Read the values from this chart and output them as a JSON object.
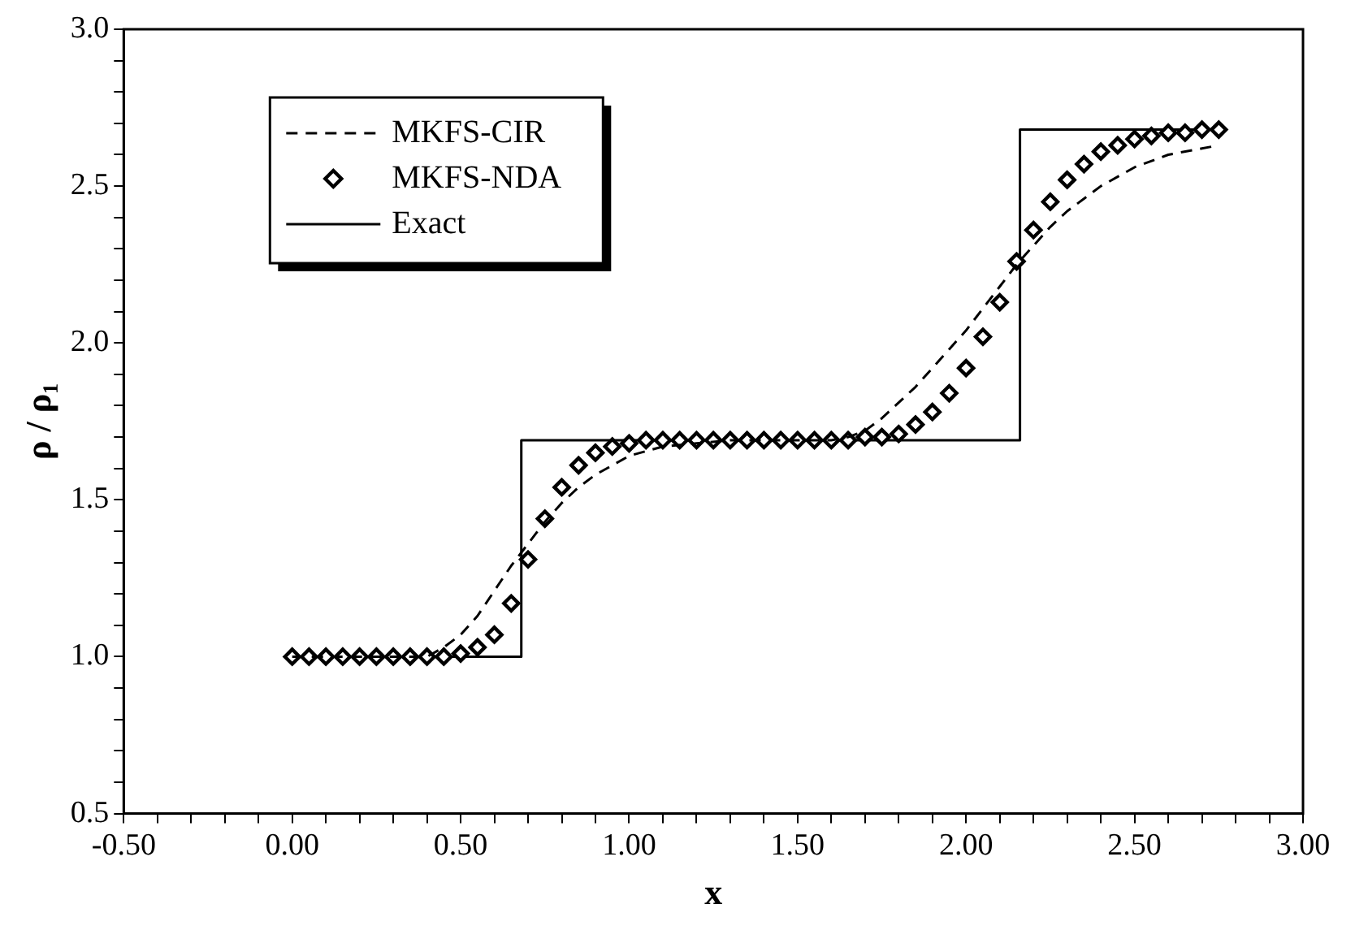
{
  "chart_data": {
    "type": "line",
    "xlabel": "x",
    "ylabel": "ρ / ρ₁",
    "xlim": [
      -0.5,
      3.0
    ],
    "ylim": [
      0.5,
      3.0
    ],
    "xticks": [
      {
        "value": -0.5,
        "label": "-0.50"
      },
      {
        "value": -0.4,
        "label": null
      },
      {
        "value": -0.3,
        "label": null
      },
      {
        "value": -0.2,
        "label": null
      },
      {
        "value": -0.1,
        "label": null
      },
      {
        "value": 0,
        "label": "0.00"
      },
      {
        "value": 0.1,
        "label": null
      },
      {
        "value": 0.2,
        "label": null
      },
      {
        "value": 0.3,
        "label": null
      },
      {
        "value": 0.4,
        "label": null
      },
      {
        "value": 0.5,
        "label": "0.50"
      },
      {
        "value": 0.6,
        "label": null
      },
      {
        "value": 0.7,
        "label": null
      },
      {
        "value": 0.8,
        "label": null
      },
      {
        "value": 0.9,
        "label": null
      },
      {
        "value": 1,
        "label": "1.00"
      },
      {
        "value": 1.1,
        "label": null
      },
      {
        "value": 1.2,
        "label": null
      },
      {
        "value": 1.3,
        "label": null
      },
      {
        "value": 1.4,
        "label": null
      },
      {
        "value": 1.5,
        "label": "1.50"
      },
      {
        "value": 1.6,
        "label": null
      },
      {
        "value": 1.7,
        "label": null
      },
      {
        "value": 1.8,
        "label": null
      },
      {
        "value": 1.9,
        "label": null
      },
      {
        "value": 2,
        "label": "2.00"
      },
      {
        "value": 2.1,
        "label": null
      },
      {
        "value": 2.2,
        "label": null
      },
      {
        "value": 2.3,
        "label": null
      },
      {
        "value": 2.4,
        "label": null
      },
      {
        "value": 2.5,
        "label": "2.50"
      },
      {
        "value": 2.6,
        "label": null
      },
      {
        "value": 2.7,
        "label": null
      },
      {
        "value": 2.8,
        "label": null
      },
      {
        "value": 2.9,
        "label": null
      },
      {
        "value": 3,
        "label": "3.00"
      }
    ],
    "yticks": [
      {
        "value": 0.5,
        "label": "0.5"
      },
      {
        "value": 0.6,
        "label": null
      },
      {
        "value": 0.7,
        "label": null
      },
      {
        "value": 0.8,
        "label": null
      },
      {
        "value": 0.9,
        "label": null
      },
      {
        "value": 1,
        "label": "1.0"
      },
      {
        "value": 1.1,
        "label": null
      },
      {
        "value": 1.2,
        "label": null
      },
      {
        "value": 1.3,
        "label": null
      },
      {
        "value": 1.4,
        "label": null
      },
      {
        "value": 1.5,
        "label": "1.5"
      },
      {
        "value": 1.6,
        "label": null
      },
      {
        "value": 1.7,
        "label": null
      },
      {
        "value": 1.8,
        "label": null
      },
      {
        "value": 1.9,
        "label": null
      },
      {
        "value": 2,
        "label": "2.0"
      },
      {
        "value": 2.1,
        "label": null
      },
      {
        "value": 2.2,
        "label": null
      },
      {
        "value": 2.3,
        "label": null
      },
      {
        "value": 2.4,
        "label": null
      },
      {
        "value": 2.5,
        "label": "2.5"
      },
      {
        "value": 2.6,
        "label": null
      },
      {
        "value": 2.7,
        "label": null
      },
      {
        "value": 2.8,
        "label": null
      },
      {
        "value": 2.9,
        "label": null
      },
      {
        "value": 3,
        "label": "3.0"
      }
    ],
    "grid": false,
    "legend": "top left",
    "series": [
      {
        "name": "MKFS-CIR",
        "color": "#000000",
        "line_style": "dashed",
        "marker": "none",
        "x": [
          0,
          0.4,
          0.45,
          0.5,
          0.55,
          0.6,
          0.65,
          0.7,
          0.75,
          0.8,
          0.85,
          0.9,
          0.95,
          1.0,
          1.1,
          1.2,
          1.3,
          1.6,
          1.65,
          1.7,
          1.75,
          1.8,
          1.85,
          1.9,
          1.95,
          2.0,
          2.05,
          2.1,
          2.15,
          2.2,
          2.25,
          2.3,
          2.4,
          2.5,
          2.6,
          2.7,
          2.75
        ],
        "values": [
          1.0,
          1.0,
          1.03,
          1.07,
          1.13,
          1.21,
          1.29,
          1.36,
          1.43,
          1.49,
          1.54,
          1.58,
          1.61,
          1.64,
          1.67,
          1.68,
          1.69,
          1.69,
          1.7,
          1.72,
          1.76,
          1.81,
          1.86,
          1.92,
          1.98,
          2.04,
          2.11,
          2.18,
          2.25,
          2.31,
          2.37,
          2.42,
          2.5,
          2.56,
          2.6,
          2.62,
          2.63
        ]
      },
      {
        "name": "MKFS-NDA",
        "color": "#000000",
        "type": "scatter",
        "marker": "diamond",
        "x": [
          0,
          0.05,
          0.1,
          0.15,
          0.2,
          0.25,
          0.3,
          0.35,
          0.4,
          0.45,
          0.5,
          0.55,
          0.6,
          0.65,
          0.7,
          0.75,
          0.8,
          0.85,
          0.9,
          0.95,
          1.0,
          1.05,
          1.1,
          1.15,
          1.2,
          1.25,
          1.3,
          1.35,
          1.4,
          1.45,
          1.5,
          1.55,
          1.6,
          1.65,
          1.7,
          1.75,
          1.8,
          1.85,
          1.9,
          1.95,
          2.0,
          2.05,
          2.1,
          2.15,
          2.2,
          2.25,
          2.3,
          2.35,
          2.4,
          2.45,
          2.5,
          2.55,
          2.6,
          2.65,
          2.7,
          2.75
        ],
        "values": [
          1.0,
          1.0,
          1.0,
          1.0,
          1.0,
          1.0,
          1.0,
          1.0,
          1.0,
          1.0,
          1.01,
          1.03,
          1.07,
          1.17,
          1.31,
          1.44,
          1.54,
          1.61,
          1.65,
          1.67,
          1.68,
          1.69,
          1.69,
          1.69,
          1.69,
          1.69,
          1.69,
          1.69,
          1.69,
          1.69,
          1.69,
          1.69,
          1.69,
          1.69,
          1.7,
          1.7,
          1.71,
          1.74,
          1.78,
          1.84,
          1.92,
          2.02,
          2.13,
          2.26,
          2.36,
          2.45,
          2.52,
          2.57,
          2.61,
          2.63,
          2.65,
          2.66,
          2.67,
          2.67,
          2.68,
          2.68
        ]
      },
      {
        "name": "Exact",
        "color": "#000000",
        "line_style": "solid",
        "marker": "none",
        "x": [
          0,
          0.68,
          0.68,
          2.16,
          2.16,
          2.75
        ],
        "values": [
          1.0,
          1.0,
          1.69,
          1.69,
          2.68,
          2.68
        ]
      }
    ]
  }
}
